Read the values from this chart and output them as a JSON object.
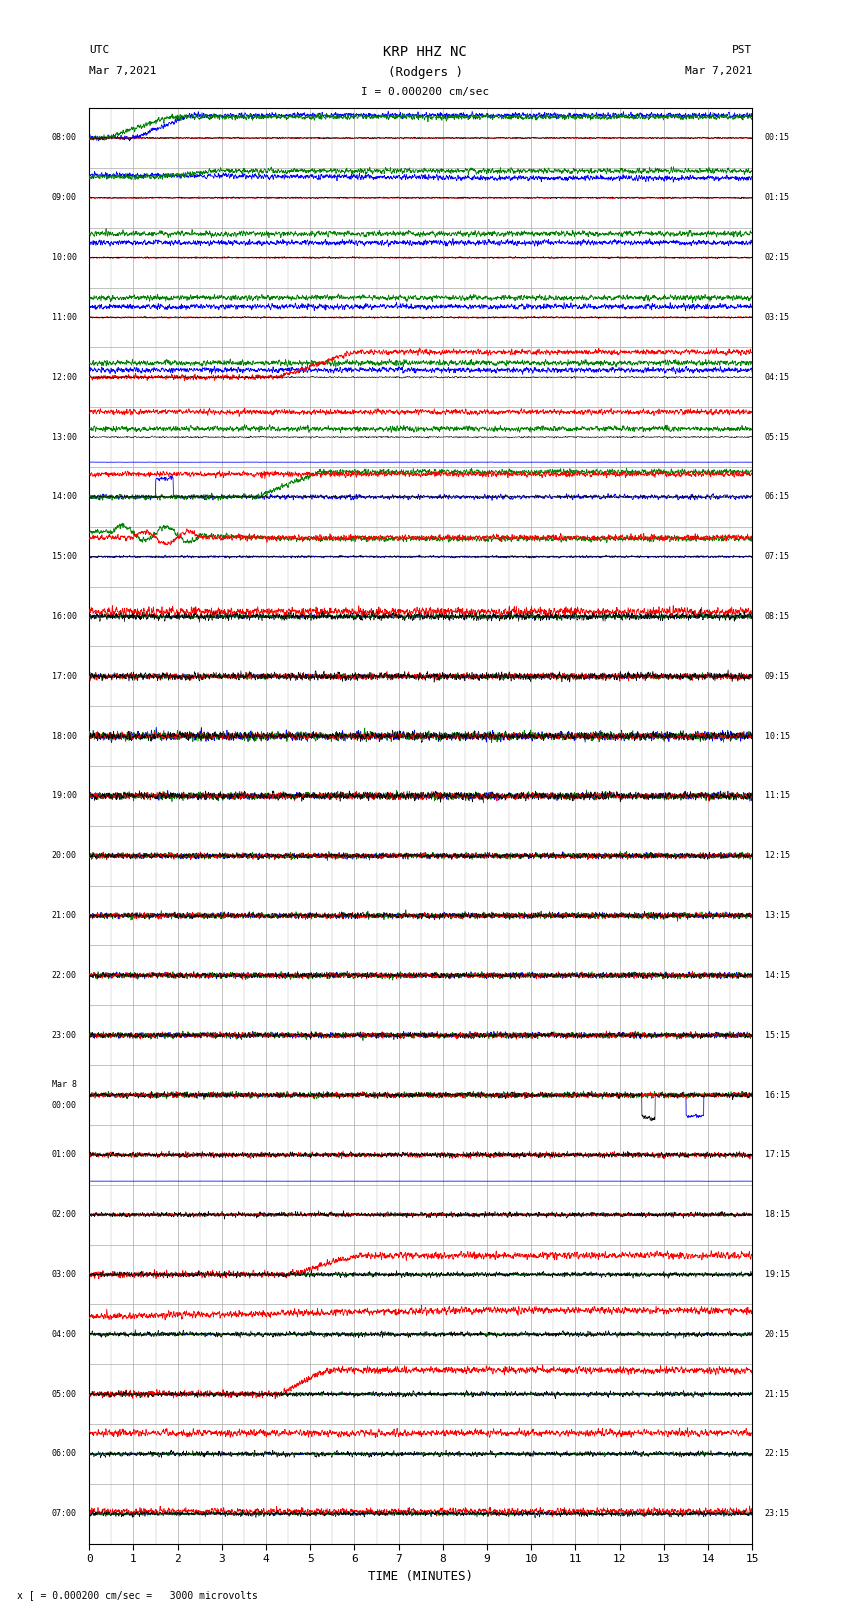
{
  "title_line1": "KRP HHZ NC",
  "title_line2": "(Rodgers )",
  "scale_label": "I = 0.000200 cm/sec",
  "utc_label1": "UTC",
  "utc_label2": "Mar 7,2021",
  "pst_label1": "PST",
  "pst_label2": "Mar 7,2021",
  "xlabel": "TIME (MINUTES)",
  "footer": "x [ = 0.000200 cm/sec =   3000 microvolts",
  "xlim": [
    0,
    15
  ],
  "xticks": [
    0,
    1,
    2,
    3,
    4,
    5,
    6,
    7,
    8,
    9,
    10,
    11,
    12,
    13,
    14,
    15
  ],
  "num_rows": 24,
  "row_labels_left": [
    "08:00",
    "09:00",
    "10:00",
    "11:00",
    "12:00",
    "13:00",
    "14:00",
    "15:00",
    "16:00",
    "17:00",
    "18:00",
    "19:00",
    "20:00",
    "21:00",
    "22:00",
    "23:00",
    "Mar 8\n00:00",
    "01:00",
    "02:00",
    "03:00",
    "04:00",
    "05:00",
    "06:00",
    "07:00"
  ],
  "row_labels_right": [
    "00:15",
    "01:15",
    "02:15",
    "03:15",
    "04:15",
    "05:15",
    "06:15",
    "07:15",
    "08:15",
    "09:15",
    "10:15",
    "11:15",
    "12:15",
    "13:15",
    "14:15",
    "15:15",
    "16:15",
    "17:15",
    "18:15",
    "19:15",
    "20:15",
    "21:15",
    "22:15",
    "23:15"
  ],
  "background_color": "#ffffff",
  "grid_color": "#aaaaaa",
  "figwidth": 8.5,
  "figheight": 16.13
}
